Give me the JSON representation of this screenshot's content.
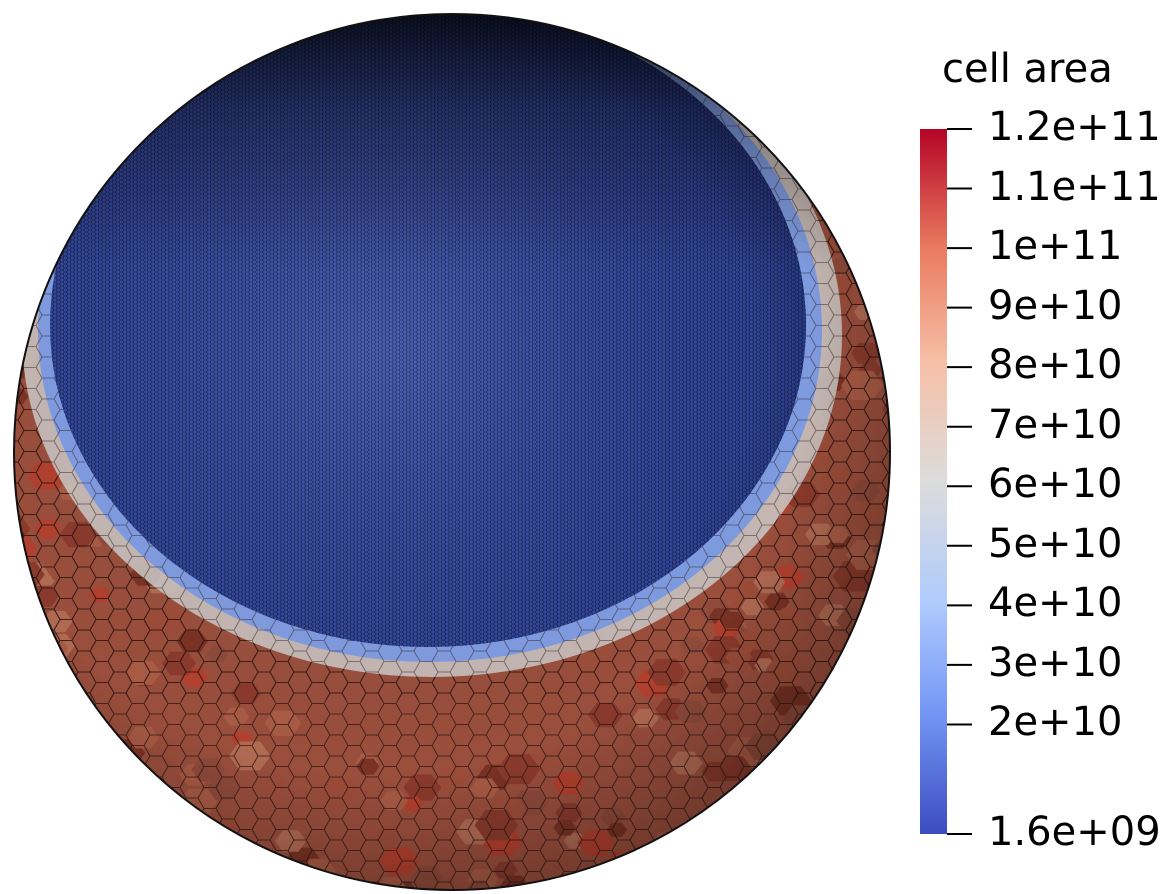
{
  "colorbar": {
    "title": "cell area",
    "min_label": "1.6e+09",
    "max_label": "1.2e+11",
    "min_value": 1600000000.0,
    "max_value": 120000000000.0,
    "colormap": "cool-to-warm",
    "colors": [
      "#3b4cc0",
      "#7396f5",
      "#b0cbfc",
      "#dddcdc",
      "#f6bfa6",
      "#ea7b60",
      "#b40426"
    ],
    "ticks": [
      {
        "label": "1.2e+11",
        "value": 120000000000.0
      },
      {
        "label": "1.1e+11",
        "value": 110000000000.0
      },
      {
        "label": "1e+11",
        "value": 100000000000.0
      },
      {
        "label": "9e+10",
        "value": 90000000000.0
      },
      {
        "label": "8e+10",
        "value": 80000000000.0
      },
      {
        "label": "7e+10",
        "value": 70000000000.0
      },
      {
        "label": "6e+10",
        "value": 60000000000.0
      },
      {
        "label": "5e+10",
        "value": 50000000000.0
      },
      {
        "label": "4e+10",
        "value": 40000000000.0
      },
      {
        "label": "3e+10",
        "value": 30000000000.0
      },
      {
        "label": "2e+10",
        "value": 20000000000.0
      },
      {
        "label": "1.6e+09",
        "value": 1600000000.0
      }
    ]
  },
  "mesh": {
    "shape": "sphere",
    "refined_region_color": "#3a4fa8",
    "coarse_region_color": "#9a4e3c",
    "transition_color": "#c9c6c4"
  }
}
